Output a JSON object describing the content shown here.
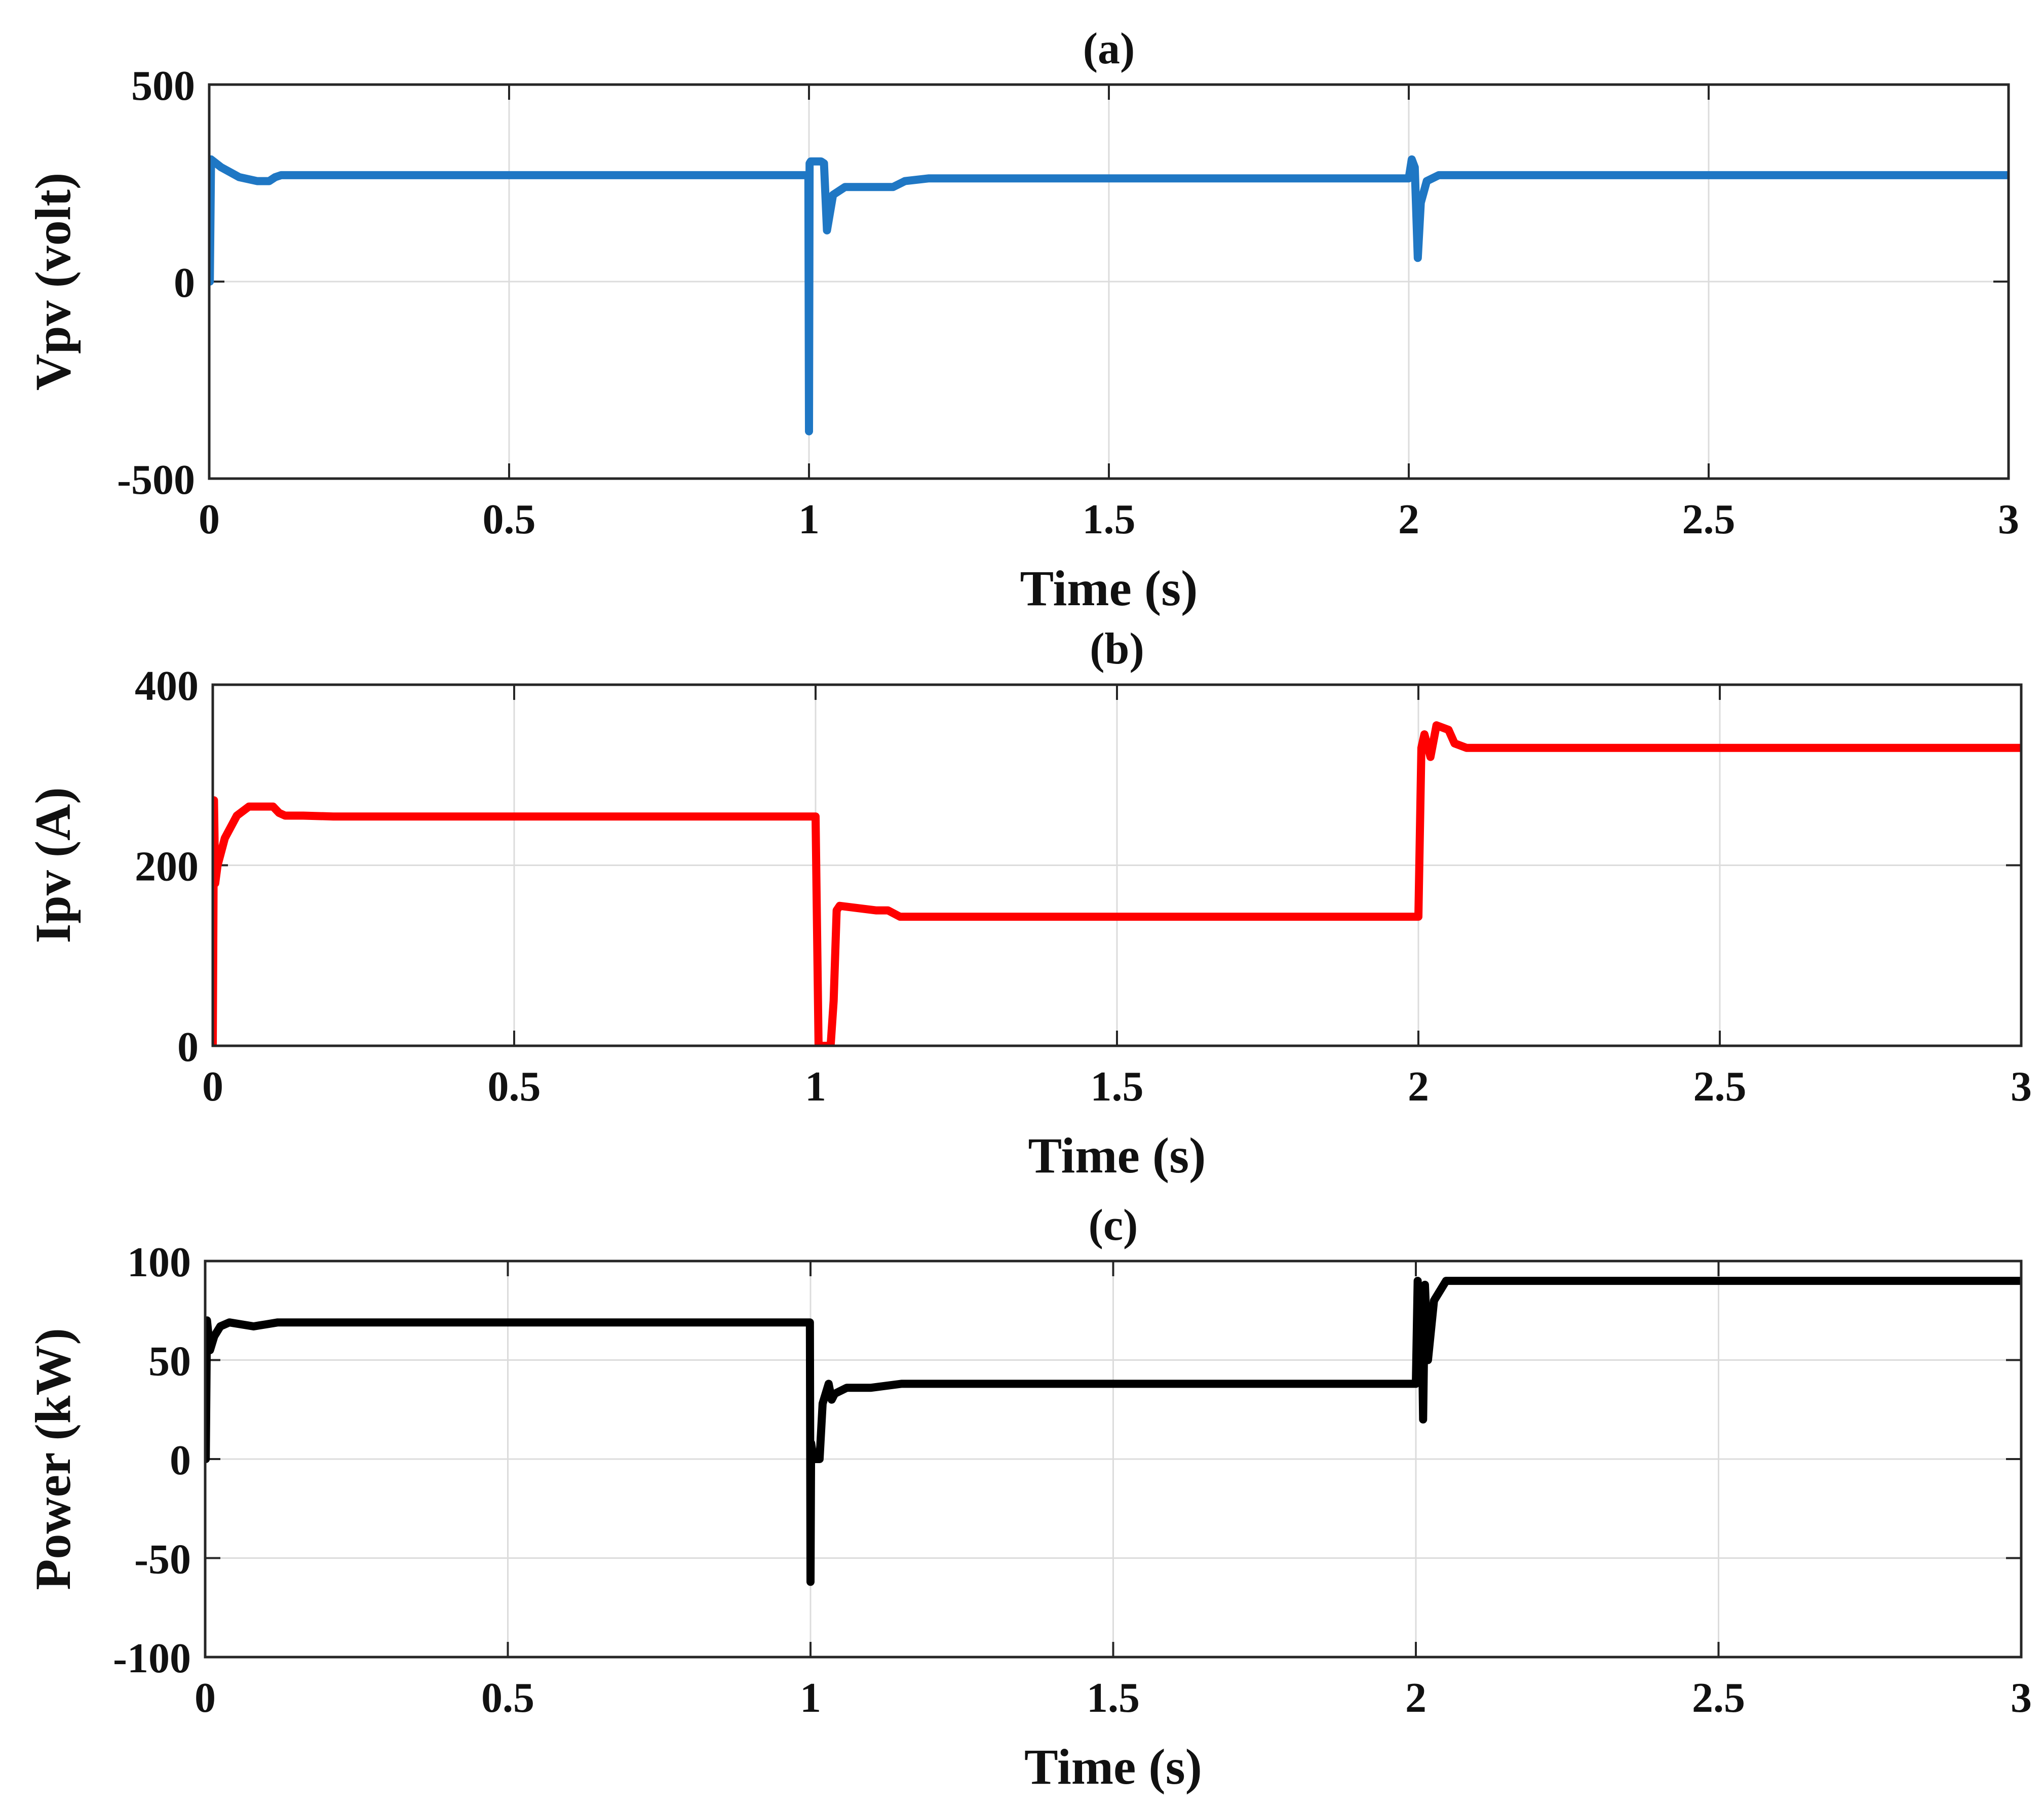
{
  "chart_data": [
    {
      "id": "a",
      "type": "line",
      "title": "(a)",
      "xlabel": "Time (s)",
      "ylabel": "Vpv (volt)",
      "xlim": [
        0,
        3
      ],
      "ylim": [
        -500,
        500
      ],
      "xticks": [
        0,
        0.5,
        1,
        1.5,
        2,
        2.5,
        3
      ],
      "xtick_labels": [
        "0",
        "0.5",
        "1",
        "1.5",
        "2",
        "2.5",
        "3"
      ],
      "yticks": [
        -500,
        0,
        500
      ],
      "ytick_labels": [
        "-500",
        "0",
        "500"
      ],
      "grid": true,
      "series": [
        {
          "name": "Vpv",
          "color": "#1f77c4",
          "x": [
            0,
            0.001,
            0.003,
            0.02,
            0.05,
            0.08,
            0.1,
            0.11,
            0.12,
            0.5,
            0.999,
            1.0,
            1.001,
            1.003,
            1.02,
            1.025,
            1.03,
            1.04,
            1.06,
            1.09,
            1.12,
            1.14,
            1.16,
            1.2,
            1.5,
            1.999,
            2.0,
            2.005,
            2.01,
            2.015,
            2.02,
            2.03,
            2.05,
            2.1,
            2.5,
            3.0
          ],
          "y": [
            0,
            0,
            310,
            290,
            265,
            255,
            255,
            265,
            270,
            270,
            270,
            -380,
            300,
            305,
            305,
            300,
            130,
            220,
            240,
            240,
            240,
            240,
            255,
            262,
            262,
            262,
            262,
            310,
            290,
            60,
            200,
            255,
            270,
            270,
            270,
            270
          ]
        }
      ]
    },
    {
      "id": "b",
      "type": "line",
      "title": "(b)",
      "xlabel": "Time (s)",
      "ylabel": "Ipv (A)",
      "xlim": [
        0,
        3
      ],
      "ylim": [
        0,
        400
      ],
      "xticks": [
        0,
        0.5,
        1,
        1.5,
        2,
        2.5,
        3
      ],
      "xtick_labels": [
        "0",
        "0.5",
        "1",
        "1.5",
        "2",
        "2.5",
        "3"
      ],
      "yticks": [
        0,
        200,
        400
      ],
      "ytick_labels": [
        "0",
        "200",
        "400"
      ],
      "grid": true,
      "series": [
        {
          "name": "Ipv",
          "color": "#ff0000",
          "x": [
            0,
            0.002,
            0.004,
            0.008,
            0.02,
            0.04,
            0.06,
            0.1,
            0.11,
            0.12,
            0.15,
            0.2,
            0.5,
            0.999,
            1.0,
            1.005,
            1.025,
            1.03,
            1.035,
            1.04,
            1.1,
            1.12,
            1.14,
            1.2,
            1.5,
            1.999,
            2.0,
            2.005,
            2.01,
            2.02,
            2.03,
            2.05,
            2.06,
            2.08,
            2.1,
            2.5,
            3.0
          ],
          "y": [
            0,
            272,
            180,
            200,
            230,
            255,
            265,
            265,
            258,
            255,
            255,
            254,
            254,
            254,
            254,
            0,
            0,
            50,
            150,
            155,
            150,
            150,
            143,
            143,
            143,
            143,
            143,
            330,
            345,
            320,
            355,
            350,
            335,
            330,
            330,
            330,
            330
          ]
        }
      ]
    },
    {
      "id": "c",
      "type": "line",
      "title": "(c)",
      "xlabel": "Time (s)",
      "ylabel": "Power (kW)",
      "xlim": [
        0,
        3
      ],
      "ylim": [
        -100,
        100
      ],
      "xticks": [
        0,
        0.5,
        1,
        1.5,
        2,
        2.5,
        3
      ],
      "xtick_labels": [
        "0",
        "0.5",
        "1",
        "1.5",
        "2",
        "2.5",
        "3"
      ],
      "yticks": [
        -100,
        -50,
        0,
        50,
        100
      ],
      "ytick_labels": [
        "-100",
        "-50",
        "0",
        "50",
        "100"
      ],
      "grid": true,
      "series": [
        {
          "name": "Power",
          "color": "#000000",
          "x": [
            0,
            0.001,
            0.003,
            0.008,
            0.015,
            0.025,
            0.04,
            0.08,
            0.1,
            0.12,
            0.5,
            0.999,
            1.0,
            1.001,
            1.005,
            1.015,
            1.02,
            1.03,
            1.035,
            1.04,
            1.06,
            1.1,
            1.15,
            1.5,
            1.999,
            2.0,
            2.003,
            2.006,
            2.009,
            2.012,
            2.015,
            2.02,
            2.03,
            2.05,
            2.1,
            2.5,
            3.0
          ],
          "y": [
            0,
            0,
            70,
            55,
            62,
            67,
            69,
            67,
            68,
            69,
            69,
            69,
            -62,
            8,
            0,
            0,
            28,
            38,
            30,
            33,
            36,
            36,
            38,
            38,
            38,
            38,
            90,
            55,
            85,
            20,
            88,
            50,
            80,
            90,
            90,
            90,
            90
          ]
        }
      ]
    }
  ]
}
